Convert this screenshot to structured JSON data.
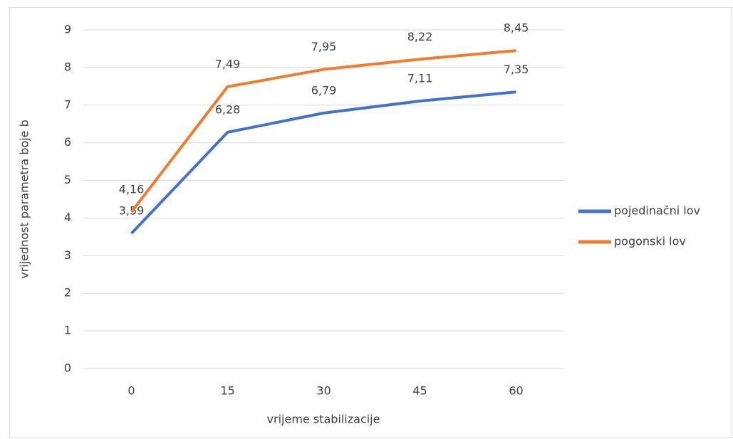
{
  "chart_data": {
    "type": "line",
    "x_label": "vrijeme stabilizacije",
    "y_label": "vrijednost parametra boje b",
    "categories": [
      "0",
      "15",
      "30",
      "45",
      "60"
    ],
    "series": [
      {
        "name": "pojedinačni lov",
        "color": "#4472c4",
        "values": [
          3.59,
          6.28,
          6.79,
          7.11,
          7.35
        ],
        "value_labels": [
          "3,59",
          "6,28",
          "6,79",
          "7,11",
          "7,35"
        ]
      },
      {
        "name": "pogonski lov",
        "color": "#ed7d31",
        "values": [
          4.16,
          7.49,
          7.95,
          8.22,
          8.45
        ],
        "value_labels": [
          "4,16",
          "7,49",
          "7,95",
          "8,22",
          "8,45"
        ]
      }
    ],
    "ylim": [
      0,
      9
    ],
    "yticks": [
      0,
      1,
      2,
      3,
      4,
      5,
      6,
      7,
      8,
      9
    ],
    "grid": true,
    "legend": "right"
  }
}
